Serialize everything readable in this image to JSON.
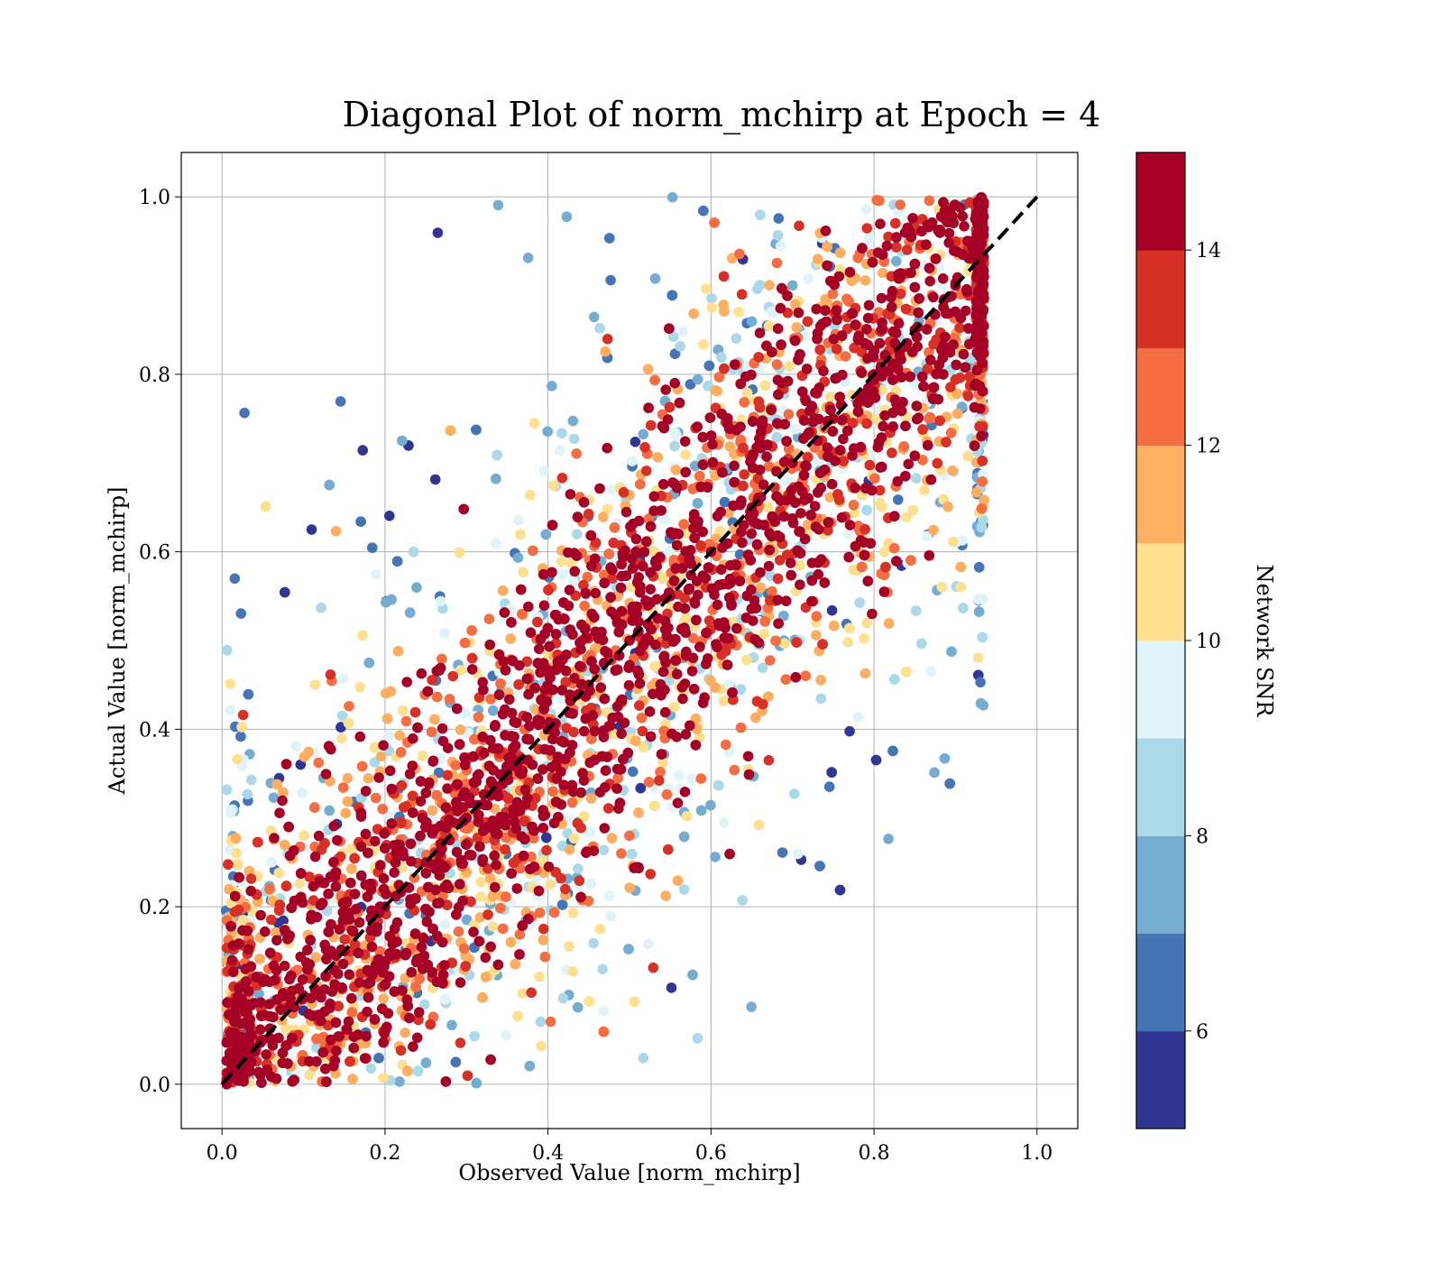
{
  "chart_data": {
    "type": "scatter",
    "title": "Diagonal Plot of norm_mchirp at Epoch = 4",
    "xlabel": "Observed Value [norm_mchirp]",
    "ylabel": "Actual Value [norm_mchirp]",
    "xlim": [
      -0.05,
      1.05
    ],
    "ylim": [
      -0.05,
      1.05
    ],
    "xticks": [
      0.0,
      0.2,
      0.4,
      0.6,
      0.8,
      1.0
    ],
    "yticks": [
      0.0,
      0.2,
      0.4,
      0.6,
      0.8,
      1.0
    ],
    "grid": true,
    "reference_line": {
      "style": "dashed",
      "color": "#000000",
      "x": [
        0.0,
        1.0
      ],
      "y": [
        0.0,
        1.0
      ]
    },
    "colorbar": {
      "label": "Network SNR",
      "range": [
        5,
        15
      ],
      "ticks": [
        6,
        8,
        10,
        12,
        14
      ],
      "colormap": "RdYlBu_r",
      "colors": [
        "#313695",
        "#4575b4",
        "#74add1",
        "#abd9e9",
        "#e0f3f8",
        "#fee090",
        "#fdae61",
        "#f46d43",
        "#d73027",
        "#a50026"
      ]
    },
    "series": [
      {
        "description_points": "dense point cloud around the diagonal; high-SNR points tight to y=x, low-SNR points scattered",
        "x": [
          0.02,
          0.05,
          0.1,
          0.15,
          0.2,
          0.25,
          0.3,
          0.35,
          0.4,
          0.45,
          0.5,
          0.55,
          0.6,
          0.65,
          0.7,
          0.75,
          0.8,
          0.85,
          0.9,
          0.93
        ],
        "y": [
          0.02,
          0.05,
          0.1,
          0.15,
          0.2,
          0.25,
          0.3,
          0.35,
          0.4,
          0.45,
          0.5,
          0.55,
          0.6,
          0.65,
          0.7,
          0.75,
          0.8,
          0.85,
          0.9,
          0.93
        ],
        "snr": [
          15,
          15,
          15,
          15,
          15,
          15,
          15,
          15,
          15,
          15,
          15,
          15,
          15,
          15,
          15,
          15,
          15,
          15,
          15,
          15
        ]
      }
    ]
  }
}
